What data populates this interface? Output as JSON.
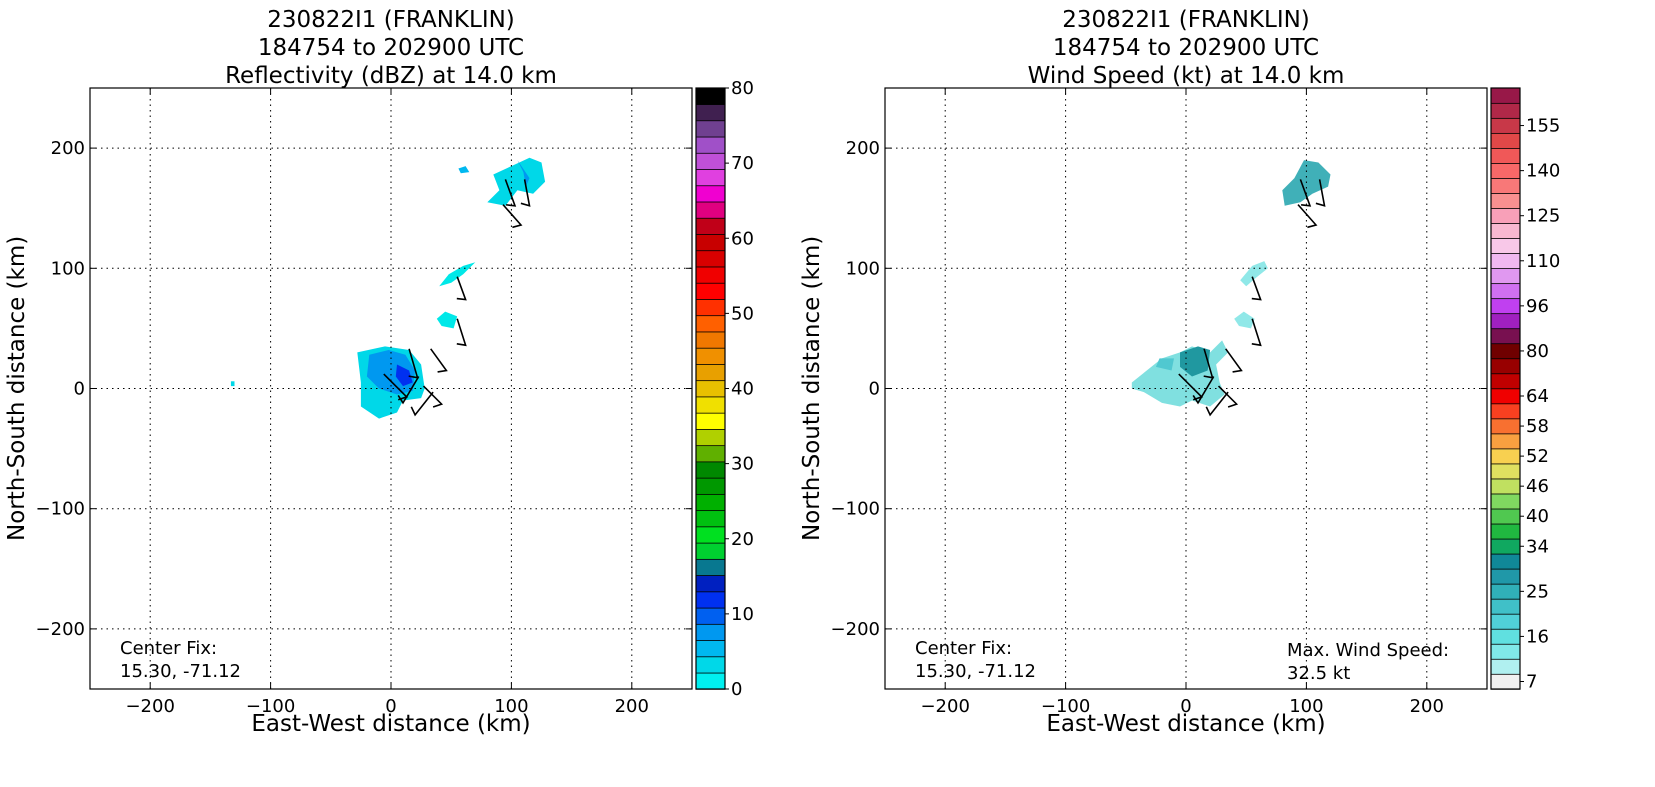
{
  "chart_data": [
    {
      "type": "heatmap",
      "title_lines": [
        "230822I1 (FRANKLIN)",
        "184754 to 202900 UTC",
        "Reflectivity (dBZ) at 14.0 km"
      ],
      "xlabel": "East-West distance (km)",
      "ylabel": "North-South distance (km)",
      "xlim": [
        -250,
        250
      ],
      "ylim": [
        -250,
        250
      ],
      "xticks": [
        -200,
        -100,
        0,
        100,
        200
      ],
      "yticks": [
        -200,
        -100,
        0,
        100,
        200
      ],
      "grid": true,
      "annotations": [
        "Center Fix:",
        "15.30, -71.12"
      ],
      "colorbar": {
        "range": [
          0,
          80
        ],
        "ticks": [
          0,
          10,
          20,
          30,
          40,
          50,
          60,
          70,
          80
        ],
        "colors": [
          "#00f0f0",
          "#00d8e8",
          "#00b8f0",
          "#0098f0",
          "#0060f0",
          "#0030f0",
          "#0020c0",
          "#087890",
          "#00d030",
          "#00e020",
          "#00c010",
          "#00b000",
          "#009800",
          "#008800",
          "#60b000",
          "#b0d000",
          "#ffff00",
          "#f0e000",
          "#e8c000",
          "#e8a000",
          "#f09000",
          "#f07800",
          "#ff6000",
          "#ff3000",
          "#ff0000",
          "#f00000",
          "#d80000",
          "#c80000",
          "#c00018",
          "#e00080",
          "#f000d0",
          "#e040e0",
          "#c050d8",
          "#a050c8",
          "#704090",
          "#402050",
          "#000000"
        ]
      },
      "regions": [
        {
          "points": [
            [
              -28,
              30
            ],
            [
              -5,
              35
            ],
            [
              15,
              32
            ],
            [
              25,
              20
            ],
            [
              28,
              0
            ],
            [
              25,
              -8
            ],
            [
              10,
              -10
            ],
            [
              5,
              -20
            ],
            [
              -10,
              -25
            ],
            [
              -25,
              -15
            ],
            [
              -25,
              5
            ]
          ],
          "level": 9,
          "color": "#00d8e8"
        },
        {
          "points": [
            [
              -18,
              28
            ],
            [
              -2,
              32
            ],
            [
              12,
              28
            ],
            [
              20,
              15
            ],
            [
              18,
              -2
            ],
            [
              5,
              -5
            ],
            [
              -10,
              0
            ],
            [
              -20,
              10
            ]
          ],
          "level": 13,
          "color": "#0098f0"
        },
        {
          "points": [
            [
              5,
              20
            ],
            [
              15,
              15
            ],
            [
              18,
              5
            ],
            [
              10,
              2
            ],
            [
              4,
              10
            ]
          ],
          "level": 15,
          "color": "#0030f0"
        },
        {
          "points": [
            [
              80,
              155
            ],
            [
              90,
              165
            ],
            [
              85,
              178
            ],
            [
              100,
              185
            ],
            [
              115,
              192
            ],
            [
              125,
              188
            ],
            [
              128,
              172
            ],
            [
              118,
              162
            ],
            [
              105,
              165
            ],
            [
              95,
              152
            ]
          ],
          "level": 7,
          "color": "#00d8e8"
        },
        {
          "points": [
            [
              105,
              190
            ],
            [
              110,
              180
            ],
            [
              112,
              168
            ],
            [
              115,
              175
            ]
          ],
          "level": 12,
          "color": "#0098f0"
        },
        {
          "points": [
            [
              40,
              85
            ],
            [
              48,
              95
            ],
            [
              60,
              102
            ],
            [
              70,
              105
            ],
            [
              60,
              95
            ],
            [
              50,
              88
            ]
          ],
          "level": 6,
          "color": "#00e8e8"
        },
        {
          "points": [
            [
              38,
              58
            ],
            [
              45,
              64
            ],
            [
              55,
              60
            ],
            [
              52,
              50
            ],
            [
              42,
              52
            ]
          ],
          "level": 6,
          "color": "#00e8e8"
        },
        {
          "points": [
            [
              56,
              183
            ],
            [
              62,
              185
            ],
            [
              65,
              180
            ],
            [
              58,
              179
            ]
          ],
          "level": 10,
          "color": "#00b8f0"
        },
        {
          "points": [
            [
              -133,
              6
            ],
            [
              -130,
              6
            ],
            [
              -130,
              2
            ],
            [
              -133,
              2
            ]
          ],
          "level": 3,
          "color": "#00d8e8"
        }
      ],
      "wind_barbs": [
        {
          "base": [
            93,
            153
          ],
          "tip": [
            108,
            136
          ]
        },
        {
          "base": [
            95,
            174
          ],
          "tip": [
            103,
            152
          ]
        },
        {
          "base": [
            111,
            174
          ],
          "tip": [
            115,
            152
          ]
        },
        {
          "base": [
            55,
            93
          ],
          "tip": [
            62,
            74
          ]
        },
        {
          "base": [
            55,
            58
          ],
          "tip": [
            62,
            36
          ]
        },
        {
          "base": [
            33,
            33
          ],
          "tip": [
            46,
            15
          ]
        },
        {
          "base": [
            15,
            33
          ],
          "tip": [
            22,
            9
          ]
        },
        {
          "base": [
            -6,
            12
          ],
          "tip": [
            13,
            -7
          ]
        },
        {
          "base": [
            23,
            10
          ],
          "tip": [
            10,
            -12
          ]
        },
        {
          "base": [
            35,
            -3
          ],
          "tip": [
            20,
            -22
          ]
        },
        {
          "base": [
            27,
            2
          ],
          "tip": [
            42,
            -13
          ]
        }
      ]
    },
    {
      "type": "heatmap",
      "title_lines": [
        "230822I1 (FRANKLIN)",
        "184754 to 202900 UTC",
        "Wind Speed (kt) at 14.0 km"
      ],
      "xlabel": "East-West distance (km)",
      "ylabel": "North-South distance (km)",
      "xlim": [
        -250,
        250
      ],
      "ylim": [
        -250,
        250
      ],
      "xticks": [
        -200,
        -100,
        0,
        100,
        200
      ],
      "yticks": [
        -200,
        -100,
        0,
        100,
        200
      ],
      "grid": true,
      "annotations": [
        "Center Fix:",
        "15.30, -71.12"
      ],
      "max_wind_label": [
        "Max. Wind Speed:",
        "32.5 kt"
      ],
      "colorbar": {
        "range": [
          7,
          160
        ],
        "ticks": [
          7,
          16,
          25,
          34,
          40,
          46,
          52,
          58,
          64,
          80,
          96,
          110,
          125,
          140,
          155
        ],
        "colors": [
          "#f0f0f0",
          "#b0f0f0",
          "#80e8e8",
          "#60e0e0",
          "#50d0d8",
          "#40c0c8",
          "#30b0b8",
          "#2098a8",
          "#108898",
          "#10a860",
          "#20b840",
          "#50c850",
          "#80d860",
          "#c0e060",
          "#e0e060",
          "#f8d050",
          "#f8a040",
          "#f87030",
          "#f84020",
          "#f00000",
          "#c00000",
          "#980000",
          "#700000",
          "#781050",
          "#a020c0",
          "#c040f0",
          "#d070f0",
          "#e098f0",
          "#f0b8f0",
          "#f8c8e8",
          "#f8b8d0",
          "#f8a0b8",
          "#f89090",
          "#f87878",
          "#f86868",
          "#f05858",
          "#e04848",
          "#c83848",
          "#b02848",
          "#981848"
        ]
      },
      "regions": [
        {
          "points": [
            [
              -45,
              5
            ],
            [
              -20,
              25
            ],
            [
              -5,
              30
            ],
            [
              5,
              35
            ],
            [
              20,
              30
            ],
            [
              30,
              40
            ],
            [
              35,
              30
            ],
            [
              25,
              20
            ],
            [
              28,
              5
            ],
            [
              32,
              -5
            ],
            [
              20,
              -15
            ],
            [
              5,
              -10
            ],
            [
              -5,
              -15
            ],
            [
              -20,
              -12
            ],
            [
              -35,
              -3
            ],
            [
              -45,
              0
            ]
          ],
          "level": "16",
          "color": "#80e0e0"
        },
        {
          "points": [
            [
              -5,
              30
            ],
            [
              10,
              35
            ],
            [
              20,
              32
            ],
            [
              18,
              15
            ],
            [
              5,
              10
            ],
            [
              -5,
              18
            ]
          ],
          "level": "25",
          "color": "#2098a0"
        },
        {
          "points": [
            [
              -22,
              25
            ],
            [
              -10,
              25
            ],
            [
              -12,
              15
            ],
            [
              -25,
              18
            ]
          ],
          "level": "16",
          "color": "#50c8d0"
        },
        {
          "points": [
            [
              80,
              165
            ],
            [
              90,
              175
            ],
            [
              98,
              190
            ],
            [
              110,
              188
            ],
            [
              120,
              178
            ],
            [
              118,
              168
            ],
            [
              105,
              162
            ],
            [
              95,
              155
            ],
            [
              82,
              152
            ]
          ],
          "level": "25",
          "color": "#40b0b8"
        },
        {
          "points": [
            [
              45,
              90
            ],
            [
              55,
              102
            ],
            [
              65,
              106
            ],
            [
              68,
              100
            ],
            [
              58,
              92
            ],
            [
              50,
              85
            ]
          ],
          "level": "16",
          "color": "#90e8e8"
        },
        {
          "points": [
            [
              40,
              58
            ],
            [
              48,
              64
            ],
            [
              57,
              58
            ],
            [
              54,
              50
            ],
            [
              44,
              52
            ]
          ],
          "level": "16",
          "color": "#90e8e8"
        }
      ],
      "wind_barbs": [
        {
          "base": [
            93,
            153
          ],
          "tip": [
            108,
            136
          ]
        },
        {
          "base": [
            95,
            174
          ],
          "tip": [
            103,
            152
          ]
        },
        {
          "base": [
            111,
            174
          ],
          "tip": [
            115,
            152
          ]
        },
        {
          "base": [
            55,
            93
          ],
          "tip": [
            62,
            74
          ]
        },
        {
          "base": [
            55,
            58
          ],
          "tip": [
            62,
            36
          ]
        },
        {
          "base": [
            33,
            33
          ],
          "tip": [
            46,
            15
          ]
        },
        {
          "base": [
            15,
            33
          ],
          "tip": [
            22,
            9
          ]
        },
        {
          "base": [
            -6,
            12
          ],
          "tip": [
            13,
            -7
          ]
        },
        {
          "base": [
            23,
            10
          ],
          "tip": [
            10,
            -12
          ]
        },
        {
          "base": [
            35,
            -3
          ],
          "tip": [
            20,
            -22
          ]
        },
        {
          "base": [
            27,
            2
          ],
          "tip": [
            42,
            -13
          ]
        }
      ]
    }
  ]
}
